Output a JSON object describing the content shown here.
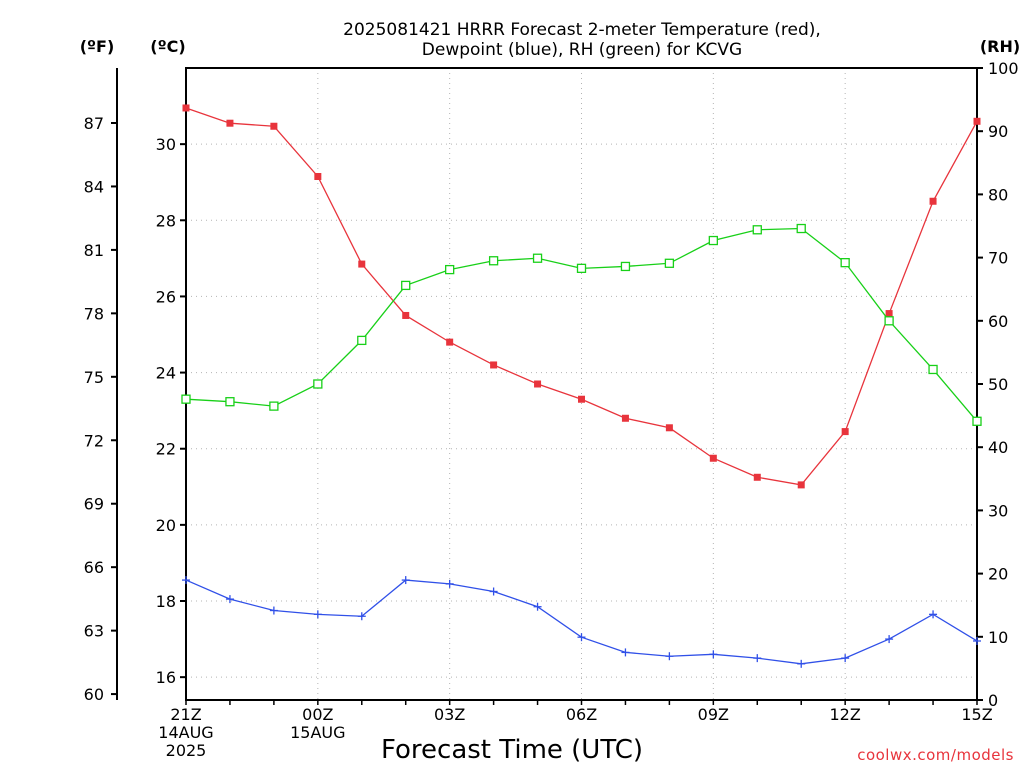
{
  "chart_data": {
    "type": "line",
    "title": [
      "2025081421 HRRR Forecast 2-meter Temperature (red),",
      "Dewpoint (blue), RH (green) for KCVG"
    ],
    "xlabel": "Forecast Time (UTC)",
    "credit": "coolwx.com/models",
    "units": {
      "fahrenheit": "(ºF)",
      "celsius": "(ºC)",
      "rh": "(RH)"
    },
    "x": [
      "21Z",
      "22Z",
      "23Z",
      "00Z",
      "01Z",
      "02Z",
      "03Z",
      "04Z",
      "05Z",
      "06Z",
      "07Z",
      "08Z",
      "09Z",
      "10Z",
      "11Z",
      "12Z",
      "13Z",
      "14Z",
      "15Z"
    ],
    "x_tick_labels": [
      {
        "index": 0,
        "lines": [
          "21Z",
          "14AUG",
          "2025"
        ]
      },
      {
        "index": 3,
        "lines": [
          "00Z",
          "15AUG"
        ]
      },
      {
        "index": 6,
        "lines": [
          "03Z"
        ]
      },
      {
        "index": 9,
        "lines": [
          "06Z"
        ]
      },
      {
        "index": 12,
        "lines": [
          "09Z"
        ]
      },
      {
        "index": 15,
        "lines": [
          "12Z"
        ]
      },
      {
        "index": 18,
        "lines": [
          "15Z"
        ]
      }
    ],
    "y_celsius": {
      "ylim": [
        15.4,
        32.0
      ],
      "ticks": [
        16,
        18,
        20,
        22,
        24,
        26,
        28,
        30
      ]
    },
    "y_fahrenheit": {
      "ticks": [
        60,
        63,
        66,
        69,
        72,
        75,
        78,
        81,
        84,
        87
      ]
    },
    "y_rh": {
      "ylim": [
        0,
        100
      ],
      "ticks": [
        0,
        10,
        20,
        30,
        40,
        50,
        60,
        70,
        80,
        90,
        100
      ]
    },
    "grid": true,
    "series": [
      {
        "name": "Temperature",
        "color": "#e8343c",
        "marker": "filled-square",
        "axis": "celsius",
        "values": [
          30.95,
          30.55,
          30.47,
          29.15,
          26.85,
          25.5,
          24.8,
          24.2,
          23.7,
          23.3,
          22.8,
          22.55,
          21.75,
          21.25,
          21.05,
          22.45,
          25.55,
          28.5,
          30.6
        ]
      },
      {
        "name": "Dewpoint",
        "color": "#3050e8",
        "marker": "plus",
        "axis": "celsius",
        "values": [
          18.55,
          18.05,
          17.75,
          17.65,
          17.6,
          18.55,
          18.45,
          18.25,
          17.85,
          17.05,
          16.65,
          16.55,
          16.6,
          16.5,
          16.35,
          16.5,
          17.0,
          17.65,
          16.95
        ]
      },
      {
        "name": "RH",
        "color": "#18d018",
        "marker": "open-square",
        "axis": "rh",
        "values": [
          47.6,
          47.2,
          46.5,
          50.0,
          56.9,
          65.6,
          68.1,
          69.5,
          69.9,
          68.3,
          68.6,
          69.1,
          72.7,
          74.4,
          74.6,
          69.2,
          60.0,
          52.3,
          44.1
        ]
      }
    ]
  }
}
